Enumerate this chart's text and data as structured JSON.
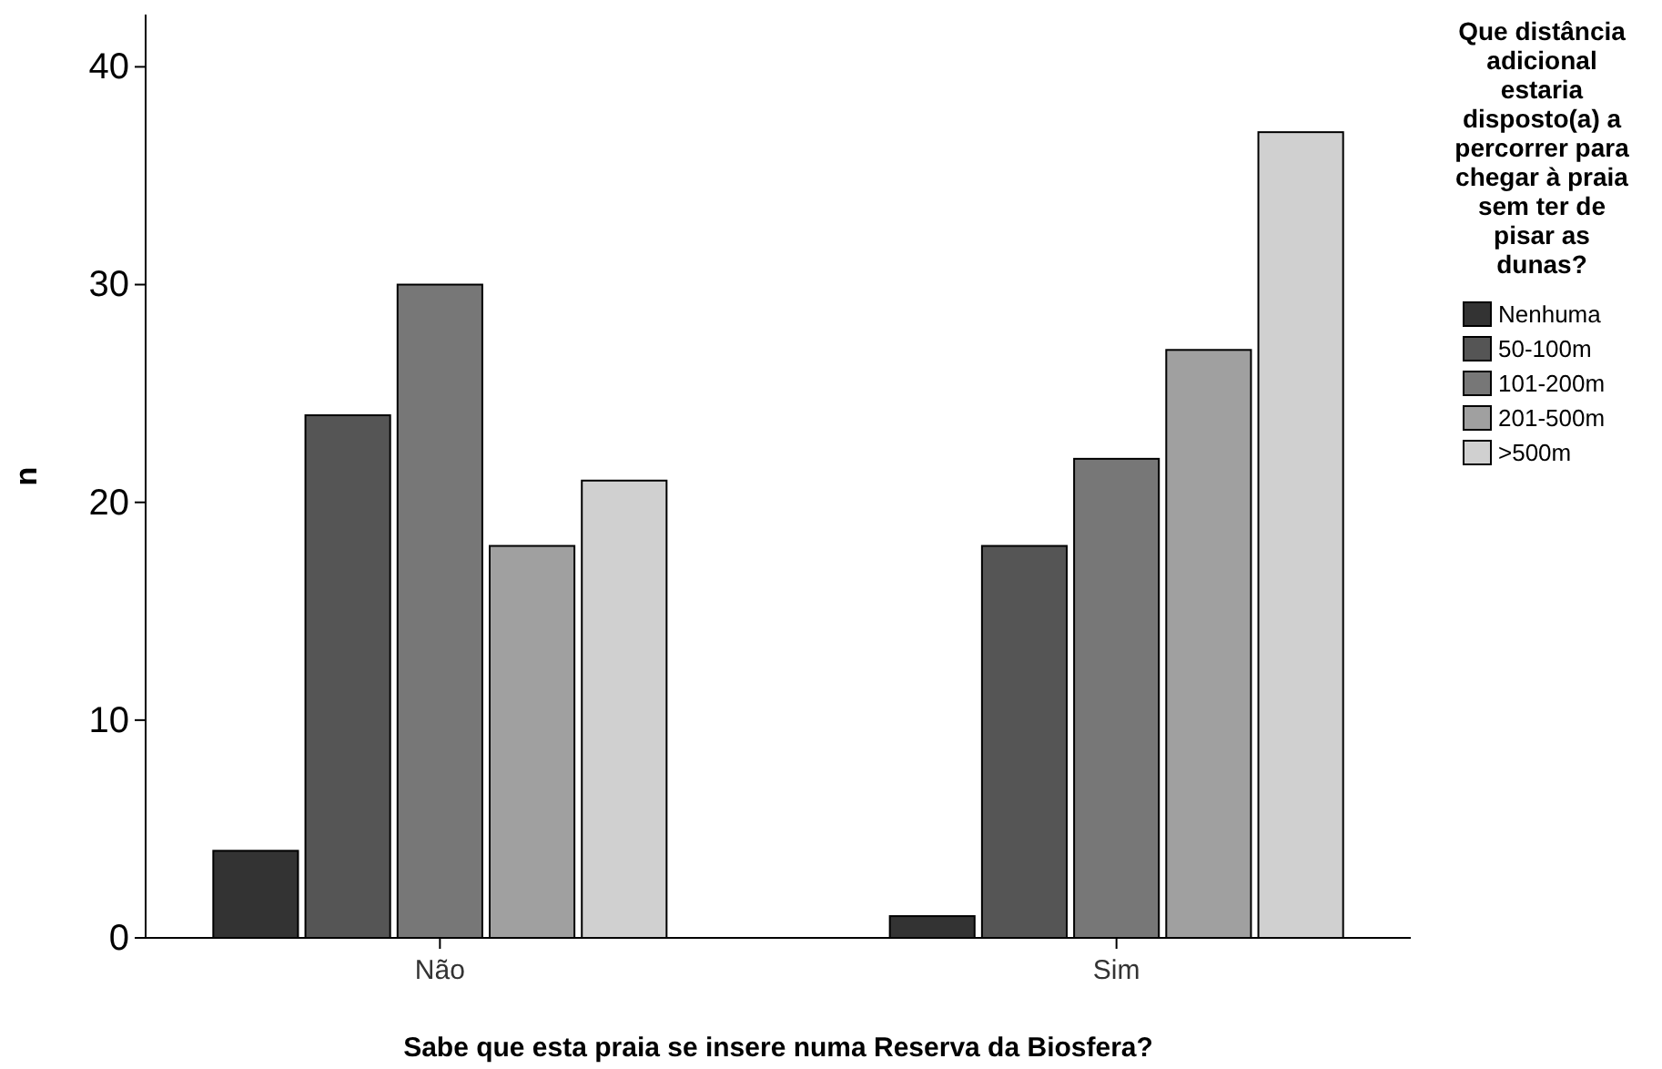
{
  "chart_data": {
    "type": "bar",
    "xlabel": "Sabe que esta praia se insere numa Reserva da Biosfera?",
    "ylabel": "n",
    "legend_title": "Que distância adicional estaria disposto(a) a percorrer para chegar à praia sem ter de pisar as dunas?",
    "categories": [
      "Não",
      "Sim"
    ],
    "series": [
      {
        "name": "Nenhuma",
        "color": "#333333",
        "values": [
          4,
          1
        ]
      },
      {
        "name": "50-100m",
        "color": "#555555",
        "values": [
          24,
          18
        ]
      },
      {
        "name": "101-200m",
        "color": "#777777",
        "values": [
          30,
          22
        ]
      },
      {
        "name": "201-500m",
        "color": "#a0a0a0",
        "values": [
          18,
          27
        ]
      },
      {
        "name": ">500m",
        "color": "#d0d0d0",
        "values": [
          21,
          37
        ]
      }
    ],
    "ylim": [
      0,
      42.4
    ],
    "yticks": [
      0,
      10,
      20,
      30,
      40
    ],
    "legend": "right"
  }
}
